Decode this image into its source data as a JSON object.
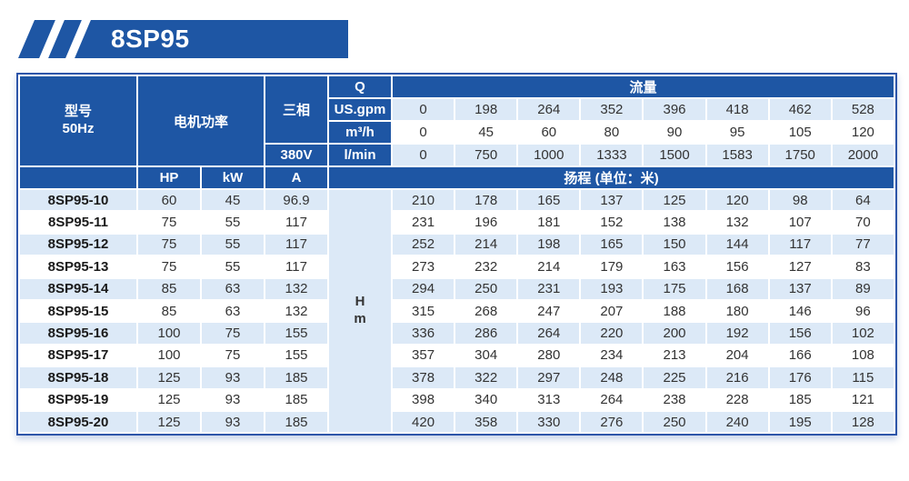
{
  "banner": {
    "title": "8SP95"
  },
  "colors": {
    "primary_blue": "#1e56a4",
    "table_border_blue": "#2d55a9",
    "light_row_blue": "#dce9f7",
    "white_row": "#ffffff",
    "body_text": "#333333",
    "header_text": "#ffffff"
  },
  "header": {
    "model_label": "型号",
    "model_freq": "50Hz",
    "motor_power_label": "电机功率",
    "three_phase_label": "三相",
    "voltage_label": "380V",
    "q_label": "Q",
    "flow_label": "流量",
    "hp_label": "HP",
    "kw_label": "kW",
    "a_label": "A",
    "head_label": "扬程 (单位：米)",
    "head_col_top": "H",
    "head_col_bottom": "m",
    "unit_rows": [
      {
        "unit": "US.gpm",
        "values": [
          "0",
          "198",
          "264",
          "352",
          "396",
          "418",
          "462",
          "528"
        ]
      },
      {
        "unit": "m³/h",
        "values": [
          "0",
          "45",
          "60",
          "80",
          "90",
          "95",
          "105",
          "120"
        ]
      },
      {
        "unit": "l/min",
        "values": [
          "0",
          "750",
          "1000",
          "1333",
          "1500",
          "1583",
          "1750",
          "2000"
        ]
      }
    ]
  },
  "rows": [
    {
      "model": "8SP95-10",
      "hp": "60",
      "kw": "45",
      "a": "96.9",
      "heads": [
        "210",
        "178",
        "165",
        "137",
        "125",
        "120",
        "98",
        "64"
      ]
    },
    {
      "model": "8SP95-11",
      "hp": "75",
      "kw": "55",
      "a": "117",
      "heads": [
        "231",
        "196",
        "181",
        "152",
        "138",
        "132",
        "107",
        "70"
      ]
    },
    {
      "model": "8SP95-12",
      "hp": "75",
      "kw": "55",
      "a": "117",
      "heads": [
        "252",
        "214",
        "198",
        "165",
        "150",
        "144",
        "117",
        "77"
      ]
    },
    {
      "model": "8SP95-13",
      "hp": "75",
      "kw": "55",
      "a": "117",
      "heads": [
        "273",
        "232",
        "214",
        "179",
        "163",
        "156",
        "127",
        "83"
      ]
    },
    {
      "model": "8SP95-14",
      "hp": "85",
      "kw": "63",
      "a": "132",
      "heads": [
        "294",
        "250",
        "231",
        "193",
        "175",
        "168",
        "137",
        "89"
      ]
    },
    {
      "model": "8SP95-15",
      "hp": "85",
      "kw": "63",
      "a": "132",
      "heads": [
        "315",
        "268",
        "247",
        "207",
        "188",
        "180",
        "146",
        "96"
      ]
    },
    {
      "model": "8SP95-16",
      "hp": "100",
      "kw": "75",
      "a": "155",
      "heads": [
        "336",
        "286",
        "264",
        "220",
        "200",
        "192",
        "156",
        "102"
      ]
    },
    {
      "model": "8SP95-17",
      "hp": "100",
      "kw": "75",
      "a": "155",
      "heads": [
        "357",
        "304",
        "280",
        "234",
        "213",
        "204",
        "166",
        "108"
      ]
    },
    {
      "model": "8SP95-18",
      "hp": "125",
      "kw": "93",
      "a": "185",
      "heads": [
        "378",
        "322",
        "297",
        "248",
        "225",
        "216",
        "176",
        "115"
      ]
    },
    {
      "model": "8SP95-19",
      "hp": "125",
      "kw": "93",
      "a": "185",
      "heads": [
        "398",
        "340",
        "313",
        "264",
        "238",
        "228",
        "185",
        "121"
      ]
    },
    {
      "model": "8SP95-20",
      "hp": "125",
      "kw": "93",
      "a": "185",
      "heads": [
        "420",
        "358",
        "330",
        "276",
        "250",
        "240",
        "195",
        "128"
      ]
    }
  ]
}
